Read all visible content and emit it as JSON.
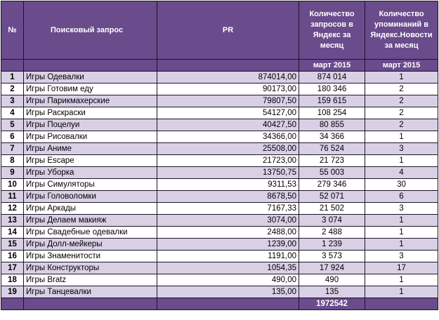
{
  "columns": {
    "num": "№",
    "query": "Поисковый запрос",
    "pr": "PR",
    "yandex": "Количество запросов в Яндекс за месяц",
    "news": "Количество упоминаний в Яндекс.Новости за месяц"
  },
  "period": {
    "yandex": "март 2015",
    "news": "март 2015"
  },
  "rows": [
    {
      "n": "1",
      "query": "Игры Одевалки",
      "pr": "874014,00",
      "yandex": "874 014",
      "news": "1"
    },
    {
      "n": "2",
      "query": "Игры Готовим еду",
      "pr": "90173,00",
      "yandex": "180 346",
      "news": "2"
    },
    {
      "n": "3",
      "query": "Игры Парикмахерские",
      "pr": "79807,50",
      "yandex": "159 615",
      "news": "2"
    },
    {
      "n": "4",
      "query": "Игры Раскраски",
      "pr": "54127,00",
      "yandex": "108 254",
      "news": "2"
    },
    {
      "n": "5",
      "query": "Игры Поцелуи",
      "pr": "40427,50",
      "yandex": "80 855",
      "news": "2"
    },
    {
      "n": "6",
      "query": "Игры Рисовалки",
      "pr": "34366,00",
      "yandex": "34 366",
      "news": "1"
    },
    {
      "n": "7",
      "query": "Игры Аниме",
      "pr": "25508,00",
      "yandex": "76 524",
      "news": "3"
    },
    {
      "n": "8",
      "query": "Игры Escape",
      "pr": "21723,00",
      "yandex": "21 723",
      "news": "1"
    },
    {
      "n": "9",
      "query": "Игры Уборка",
      "pr": "13750,75",
      "yandex": "55 003",
      "news": "4"
    },
    {
      "n": "10",
      "query": "Игры Симуляторы",
      "pr": "9311,53",
      "yandex": "279 346",
      "news": "30"
    },
    {
      "n": "11",
      "query": "Игры Головоломки",
      "pr": "8678,50",
      "yandex": "52 071",
      "news": "6"
    },
    {
      "n": "12",
      "query": "Игры Аркады",
      "pr": "7167,33",
      "yandex": "21 502",
      "news": "3"
    },
    {
      "n": "13",
      "query": "Игры Делаем макияж",
      "pr": "3074,00",
      "yandex": "3 074",
      "news": "1"
    },
    {
      "n": "14",
      "query": "Игры Свадебные одевалки",
      "pr": "2488,00",
      "yandex": "2 488",
      "news": "1"
    },
    {
      "n": "15",
      "query": "Игры Долл-мейкеры",
      "pr": "1239,00",
      "yandex": "1 239",
      "news": "1"
    },
    {
      "n": "16",
      "query": "Игры Знаменитости",
      "pr": "1191,00",
      "yandex": "3 573",
      "news": "3"
    },
    {
      "n": "17",
      "query": "Игры Конструкторы",
      "pr": "1054,35",
      "yandex": "17 924",
      "news": "17"
    },
    {
      "n": "18",
      "query": "Игры Bratz",
      "pr": "490,00",
      "yandex": "490",
      "news": "1"
    },
    {
      "n": "19",
      "query": "Игры Танцевалки",
      "pr": "135,00",
      "yandex": "135",
      "news": "1"
    }
  ],
  "total": {
    "yandex": "1972542"
  },
  "colors": {
    "header": "#6a4b8c",
    "band": "#d9d0e6",
    "border": "#1c1424"
  }
}
